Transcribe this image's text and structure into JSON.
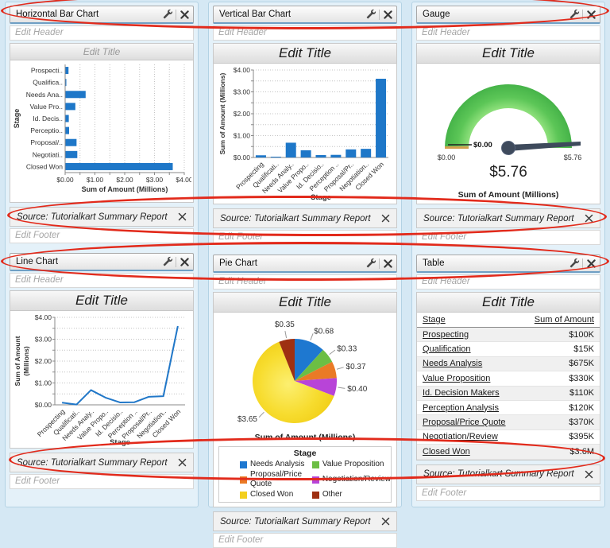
{
  "annotations": {
    "color": "#E22A1B",
    "shapes": [
      "headers-row-1",
      "sources-row-1",
      "headers-row-2",
      "sources-row-2"
    ]
  },
  "components": [
    {
      "title": "Horizontal Bar Chart",
      "edit_header": "Edit Header",
      "edit_title": "Edit Title",
      "source": "Source: Tutorialkart Summary Report",
      "edit_footer": "Edit Footer"
    },
    {
      "title": "Vertical Bar Chart",
      "edit_header": "Edit Header",
      "edit_title": "Edit Title",
      "source": "Source: Tutorialkart Summary Report",
      "edit_footer": "Edit Footer"
    },
    {
      "title": "Gauge",
      "edit_header": "Edit Header",
      "edit_title": "Edit Title",
      "source": "Source: Tutorialkart Summary Report",
      "edit_footer": "Edit Footer"
    },
    {
      "title": "Line Chart",
      "edit_header": "Edit Header",
      "edit_title": "Edit Title",
      "source": "Source: Tutorialkart Summary Report",
      "edit_footer": "Edit Footer"
    },
    {
      "title": "Pie Chart",
      "edit_header": "Edit Header",
      "edit_title": "Edit Title",
      "source": "Source: Tutorialkart Summary Report",
      "edit_footer": "Edit Footer"
    },
    {
      "title": "Table",
      "edit_header": "Edit Header",
      "edit_title": "Edit Title",
      "source": "Source: Tutorialkart Summary Report",
      "edit_footer": "Edit Footer"
    }
  ],
  "chart_data": [
    {
      "type": "bar",
      "orientation": "horizontal",
      "categories": [
        "Prospecti..",
        "Qualifica..",
        "Needs Ana..",
        "Value Pro..",
        "Id. Decis..",
        "Perceptio..",
        "Proposal/..",
        "Negotiati..",
        "Closed Won"
      ],
      "values": [
        0.1,
        0.015,
        0.675,
        0.33,
        0.11,
        0.12,
        0.37,
        0.395,
        3.6
      ],
      "xlabel": "Sum of Amount (Millions)",
      "ylabel": "Stage",
      "xlim": [
        0,
        4
      ],
      "tick_labels": [
        "$0.00",
        "$1.00",
        "$2.00",
        "$3.00",
        "$4.00"
      ],
      "grid": "dotted",
      "bar_color": "#1E77C8"
    },
    {
      "type": "bar",
      "orientation": "vertical",
      "categories": [
        "Prospecting",
        "Qualificati..",
        "Needs Analy..",
        "Value Propo..",
        "Id. Decisio..",
        "Perception ..",
        "Proposal/Pr..",
        "Negotiation..",
        "Closed Won"
      ],
      "values": [
        0.1,
        0.015,
        0.675,
        0.33,
        0.11,
        0.12,
        0.37,
        0.395,
        3.6
      ],
      "xlabel": "Stage",
      "ylabel": "Sum of Amount (Millions)",
      "ylim": [
        0,
        4
      ],
      "tick_labels": [
        "$0.00",
        "$1.00",
        "$2.00",
        "$3.00",
        "$4.00"
      ],
      "grid": "dotted",
      "bar_color": "#1E77C8"
    },
    {
      "type": "gauge",
      "value": 5.76,
      "min": 0,
      "max": 5.76,
      "min_label": "$0.00",
      "breakpoint_label": "$0.00",
      "max_label": "$5.76",
      "value_label": "$5.76",
      "caption": "Sum of Amount (Millions)",
      "arc_color": "#5CC657",
      "needle_color": "#3E4A5C"
    },
    {
      "type": "line",
      "categories": [
        "Prospecting",
        "Qualificati..",
        "Needs Analy..",
        "Value Propo..",
        "Id. Decisio..",
        "Perception ..",
        "Proposal/Pr..",
        "Negotiation..",
        "Closed Won"
      ],
      "values": [
        0.1,
        0.015,
        0.675,
        0.33,
        0.11,
        0.12,
        0.37,
        0.395,
        3.6
      ],
      "xlabel": "Stage",
      "ylabel_line1": "Sum of Amount",
      "ylabel_line2": "(Millions)",
      "ylim": [
        0,
        4
      ],
      "tick_labels": [
        "$0.00",
        "$1.00",
        "$2.00",
        "$3.00",
        "$4.00"
      ],
      "grid": "dotted",
      "line_color": "#2077C8"
    },
    {
      "type": "pie",
      "legend_title": "Stage",
      "caption": "Sum of Amount (Millions)",
      "slices": [
        {
          "label": "Needs Analysis",
          "value": 0.68,
          "display": "$0.68",
          "color": "#1E78D0"
        },
        {
          "label": "Value Proposition",
          "value": 0.33,
          "display": "$0.33",
          "color": "#6CBE44"
        },
        {
          "label": "Proposal/Price Quote",
          "value": 0.37,
          "display": "$0.37",
          "color": "#EA7A26"
        },
        {
          "label": "Negotiation/Review",
          "value": 0.4,
          "display": "$0.40",
          "color": "#B844D8"
        },
        {
          "label": "Closed Won",
          "value": 3.65,
          "display": "$3.65",
          "color": "#F3CF1E"
        },
        {
          "label": "Other",
          "value": 0.35,
          "display": "$0.35",
          "color": "#9E3012"
        }
      ]
    },
    {
      "type": "table",
      "columns": [
        "Stage",
        "Sum of Amount"
      ],
      "rows": [
        [
          "Prospecting",
          "$100K"
        ],
        [
          "Qualification",
          "$15K"
        ],
        [
          "Needs Analysis",
          "$675K"
        ],
        [
          "Value Proposition",
          "$330K"
        ],
        [
          "Id. Decision Makers",
          "$110K"
        ],
        [
          "Perception Analysis",
          "$120K"
        ],
        [
          "Proposal/Price Quote",
          "$370K"
        ],
        [
          "Negotiation/Review",
          "$395K"
        ],
        [
          "Closed Won",
          "$3.6M"
        ]
      ]
    }
  ]
}
